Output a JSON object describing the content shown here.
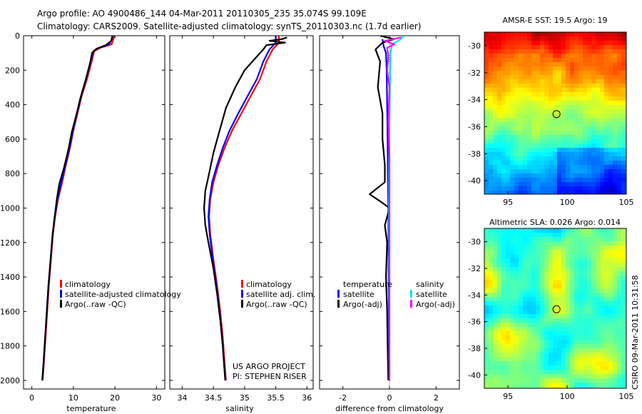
{
  "header": {
    "line1": "Argo profile: AO 4900486_144 04-Mar-2011 20110305_235 35.074S 99.109E",
    "line2": "Climatology: CARS2009. Satellite-adjusted climatology: synTS_20110303.nc (1.7d earlier)"
  },
  "chart_data": [
    {
      "type": "line",
      "panel": "temperature",
      "xlabel": "temperature",
      "ylabel": "depth",
      "xlim": [
        -2,
        32
      ],
      "ylim": [
        2050,
        0
      ],
      "xticks": [
        0,
        10,
        20,
        30
      ],
      "yticks": [
        0,
        200,
        400,
        600,
        800,
        1000,
        1200,
        1400,
        1600,
        1800,
        2000
      ],
      "legend": [
        "climatology",
        "satellite-adjusted climatology",
        "Argo(..raw -QC)"
      ],
      "series": [
        {
          "name": "climatology",
          "color": "#ff0000",
          "points": [
            [
              19.8,
              0
            ],
            [
              19.6,
              20
            ],
            [
              19.2,
              50
            ],
            [
              16.5,
              70
            ],
            [
              15,
              90
            ],
            [
              14.4,
              150
            ],
            [
              13.3,
              250
            ],
            [
              12,
              350
            ],
            [
              11,
              450
            ],
            [
              10,
              550
            ],
            [
              9.2,
              650
            ],
            [
              8.2,
              750
            ],
            [
              7.3,
              850
            ],
            [
              6.3,
              950
            ],
            [
              5.6,
              1050
            ],
            [
              5.1,
              1150
            ],
            [
              4.6,
              1300
            ],
            [
              4.1,
              1450
            ],
            [
              3.7,
              1600
            ],
            [
              3.3,
              1750
            ],
            [
              2.9,
              1900
            ],
            [
              2.6,
              2000
            ]
          ]
        },
        {
          "name": "satellite-adjusted climatology",
          "color": "#0000ff",
          "points": [
            [
              19.5,
              0
            ],
            [
              19.3,
              20
            ],
            [
              18.6,
              50
            ],
            [
              16.2,
              70
            ],
            [
              14.8,
              90
            ],
            [
              14.2,
              150
            ],
            [
              13.1,
              250
            ],
            [
              11.9,
              350
            ],
            [
              10.9,
              450
            ],
            [
              9.9,
              550
            ],
            [
              9.1,
              650
            ],
            [
              8.1,
              750
            ],
            [
              7.1,
              850
            ],
            [
              6.2,
              950
            ],
            [
              5.5,
              1050
            ],
            [
              5,
              1150
            ],
            [
              4.5,
              1300
            ],
            [
              4,
              1450
            ],
            [
              3.6,
              1600
            ],
            [
              3.2,
              1750
            ],
            [
              2.8,
              1900
            ],
            [
              2.5,
              2000
            ]
          ]
        },
        {
          "name": "Argo(..raw -QC)",
          "color": "#000000",
          "points": [
            [
              19.4,
              0
            ],
            [
              19.1,
              30
            ],
            [
              17.8,
              55
            ],
            [
              15.6,
              75
            ],
            [
              14.5,
              100
            ],
            [
              14,
              160
            ],
            [
              12.9,
              260
            ],
            [
              11.7,
              360
            ],
            [
              10.7,
              460
            ],
            [
              9.6,
              560
            ],
            [
              8.8,
              660
            ],
            [
              7.8,
              760
            ],
            [
              6.6,
              860
            ],
            [
              6,
              950
            ],
            [
              5.5,
              1050
            ],
            [
              5,
              1150
            ],
            [
              4.5,
              1300
            ],
            [
              4,
              1450
            ],
            [
              3.6,
              1600
            ],
            [
              3.2,
              1750
            ],
            [
              2.8,
              1900
            ],
            [
              2.5,
              2000
            ]
          ]
        }
      ]
    },
    {
      "type": "line",
      "panel": "salinity",
      "xlabel": "salinity",
      "ylabel": "depth",
      "xlim": [
        33.8,
        36.1
      ],
      "ylim": [
        2050,
        0
      ],
      "xticks": [
        34,
        34.5,
        35,
        35.5,
        36
      ],
      "legend": [
        "climatology",
        "satellite adj. clim.",
        "Argo(..raw -QC)"
      ],
      "series": [
        {
          "name": "climatology",
          "color": "#ff0000",
          "points": [
            [
              35.55,
              0
            ],
            [
              35.55,
              40
            ],
            [
              35.45,
              80
            ],
            [
              35.35,
              150
            ],
            [
              35.25,
              250
            ],
            [
              35.1,
              350
            ],
            [
              34.95,
              450
            ],
            [
              34.8,
              550
            ],
            [
              34.68,
              650
            ],
            [
              34.58,
              750
            ],
            [
              34.5,
              850
            ],
            [
              34.45,
              950
            ],
            [
              34.43,
              1050
            ],
            [
              34.45,
              1150
            ],
            [
              34.5,
              1300
            ],
            [
              34.56,
              1450
            ],
            [
              34.61,
              1600
            ],
            [
              34.65,
              1750
            ],
            [
              34.68,
              1900
            ],
            [
              34.7,
              2000
            ]
          ]
        },
        {
          "name": "satellite adj. clim.",
          "color": "#0000ff",
          "points": [
            [
              35.5,
              0
            ],
            [
              35.5,
              40
            ],
            [
              35.4,
              80
            ],
            [
              35.3,
              150
            ],
            [
              35.2,
              250
            ],
            [
              35.05,
              350
            ],
            [
              34.9,
              450
            ],
            [
              34.76,
              550
            ],
            [
              34.65,
              650
            ],
            [
              34.56,
              750
            ],
            [
              34.48,
              850
            ],
            [
              34.44,
              950
            ],
            [
              34.42,
              1050
            ],
            [
              34.44,
              1150
            ],
            [
              34.49,
              1300
            ],
            [
              34.55,
              1450
            ],
            [
              34.6,
              1600
            ],
            [
              34.64,
              1750
            ],
            [
              34.67,
              1900
            ],
            [
              34.69,
              2000
            ]
          ]
        },
        {
          "name": "Argo(..raw -QC)",
          "color": "#000000",
          "points": [
            [
              35.68,
              10
            ],
            [
              35.6,
              20
            ],
            [
              35.4,
              30
            ],
            [
              35.65,
              40
            ],
            [
              35.35,
              55
            ],
            [
              35.3,
              80
            ],
            [
              35.2,
              120
            ],
            [
              35,
              200
            ],
            [
              34.85,
              300
            ],
            [
              34.7,
              420
            ],
            [
              34.6,
              550
            ],
            [
              34.5,
              680
            ],
            [
              34.43,
              800
            ],
            [
              34.37,
              900
            ],
            [
              34.35,
              1000
            ],
            [
              34.37,
              1100
            ],
            [
              34.42,
              1200
            ],
            [
              34.5,
              1350
            ],
            [
              34.56,
              1500
            ],
            [
              34.61,
              1650
            ],
            [
              34.65,
              1800
            ],
            [
              34.68,
              1950
            ],
            [
              34.69,
              2000
            ]
          ]
        }
      ],
      "annotations": [
        "US ARGO PROJECT",
        "PI: STEPHEN RISER"
      ]
    },
    {
      "type": "line",
      "panel": "difference",
      "xlabel": "difference from climatology",
      "ylabel": "depth",
      "xlim": [
        -3,
        3
      ],
      "ylim": [
        2050,
        0
      ],
      "xticks": [
        -2,
        0,
        2
      ],
      "legend_titles": [
        "temperature",
        "salinity"
      ],
      "legend": [
        "satellite",
        "Argo(-adj)",
        "satellite",
        "Argo(-adj)"
      ],
      "series": [
        {
          "name": "temperature satellite",
          "color": "#0000ff",
          "points": [
            [
              -0.3,
              20
            ],
            [
              -0.25,
              60
            ],
            [
              -0.15,
              100
            ],
            [
              -0.12,
              200
            ],
            [
              -0.1,
              400
            ],
            [
              -0.08,
              600
            ],
            [
              -0.07,
              800
            ],
            [
              -0.05,
              1000
            ],
            [
              -0.04,
              1300
            ],
            [
              -0.03,
              1600
            ],
            [
              -0.02,
              2000
            ]
          ]
        },
        {
          "name": "temperature Argo(-adj)",
          "color": "#000000",
          "points": [
            [
              -0.4,
              0
            ],
            [
              0.2,
              20
            ],
            [
              -0.3,
              40
            ],
            [
              -0.6,
              80
            ],
            [
              -0.4,
              150
            ],
            [
              -0.5,
              300
            ],
            [
              -0.3,
              450
            ],
            [
              -0.3,
              600
            ],
            [
              -0.2,
              750
            ],
            [
              -0.2,
              850
            ],
            [
              -0.85,
              920
            ],
            [
              -0.3,
              970
            ],
            [
              0,
              1000
            ],
            [
              -0.2,
              1100
            ],
            [
              -0.1,
              1200
            ],
            [
              -0.15,
              1400
            ],
            [
              -0.1,
              1600
            ],
            [
              -0.08,
              1800
            ],
            [
              -0.05,
              2000
            ]
          ]
        },
        {
          "name": "salinity satellite",
          "color": "#00e5e5",
          "points": [
            [
              0.6,
              0
            ],
            [
              0.5,
              20
            ],
            [
              0.1,
              50
            ],
            [
              0.05,
              100
            ],
            [
              0.02,
              300
            ],
            [
              0,
              500
            ],
            [
              -0.02,
              800
            ],
            [
              -0.02,
              1000
            ],
            [
              -0.01,
              1400
            ],
            [
              0,
              2000
            ]
          ]
        },
        {
          "name": "salinity Argo(-adj)",
          "color": "#ff00ff",
          "points": [
            [
              0.5,
              10
            ],
            [
              -0.2,
              30
            ],
            [
              0.2,
              50
            ],
            [
              -0.1,
              70
            ],
            [
              -0.05,
              120
            ],
            [
              -0.1,
              200
            ],
            [
              0,
              300
            ],
            [
              -0.05,
              500
            ],
            [
              0,
              700
            ],
            [
              0,
              1000
            ],
            [
              0,
              1500
            ],
            [
              0,
              2000
            ]
          ]
        }
      ]
    },
    {
      "type": "heatmap",
      "panel": "sst",
      "title": "AMSR-E SST: 19.5 Argo: 19",
      "xlim": [
        93,
        105
      ],
      "ylim": [
        -41,
        -29
      ],
      "xticks": [
        95,
        100,
        105
      ],
      "yticks": [
        -30,
        -32,
        -34,
        -36,
        -38,
        -40
      ],
      "marker": [
        99.1,
        -35.07
      ]
    },
    {
      "type": "heatmap",
      "panel": "sla",
      "title": "Altimetric SLA: 0.026 Argo: 0.014",
      "xlim": [
        93,
        105
      ],
      "ylim": [
        -41,
        -29
      ],
      "xticks": [
        95,
        100,
        105
      ],
      "yticks": [
        -30,
        -32,
        -34,
        -36,
        -38,
        -40
      ],
      "marker": [
        99.1,
        -35.07
      ]
    }
  ],
  "credit": "CSIRO 09-Mar-2011 10:31:58"
}
